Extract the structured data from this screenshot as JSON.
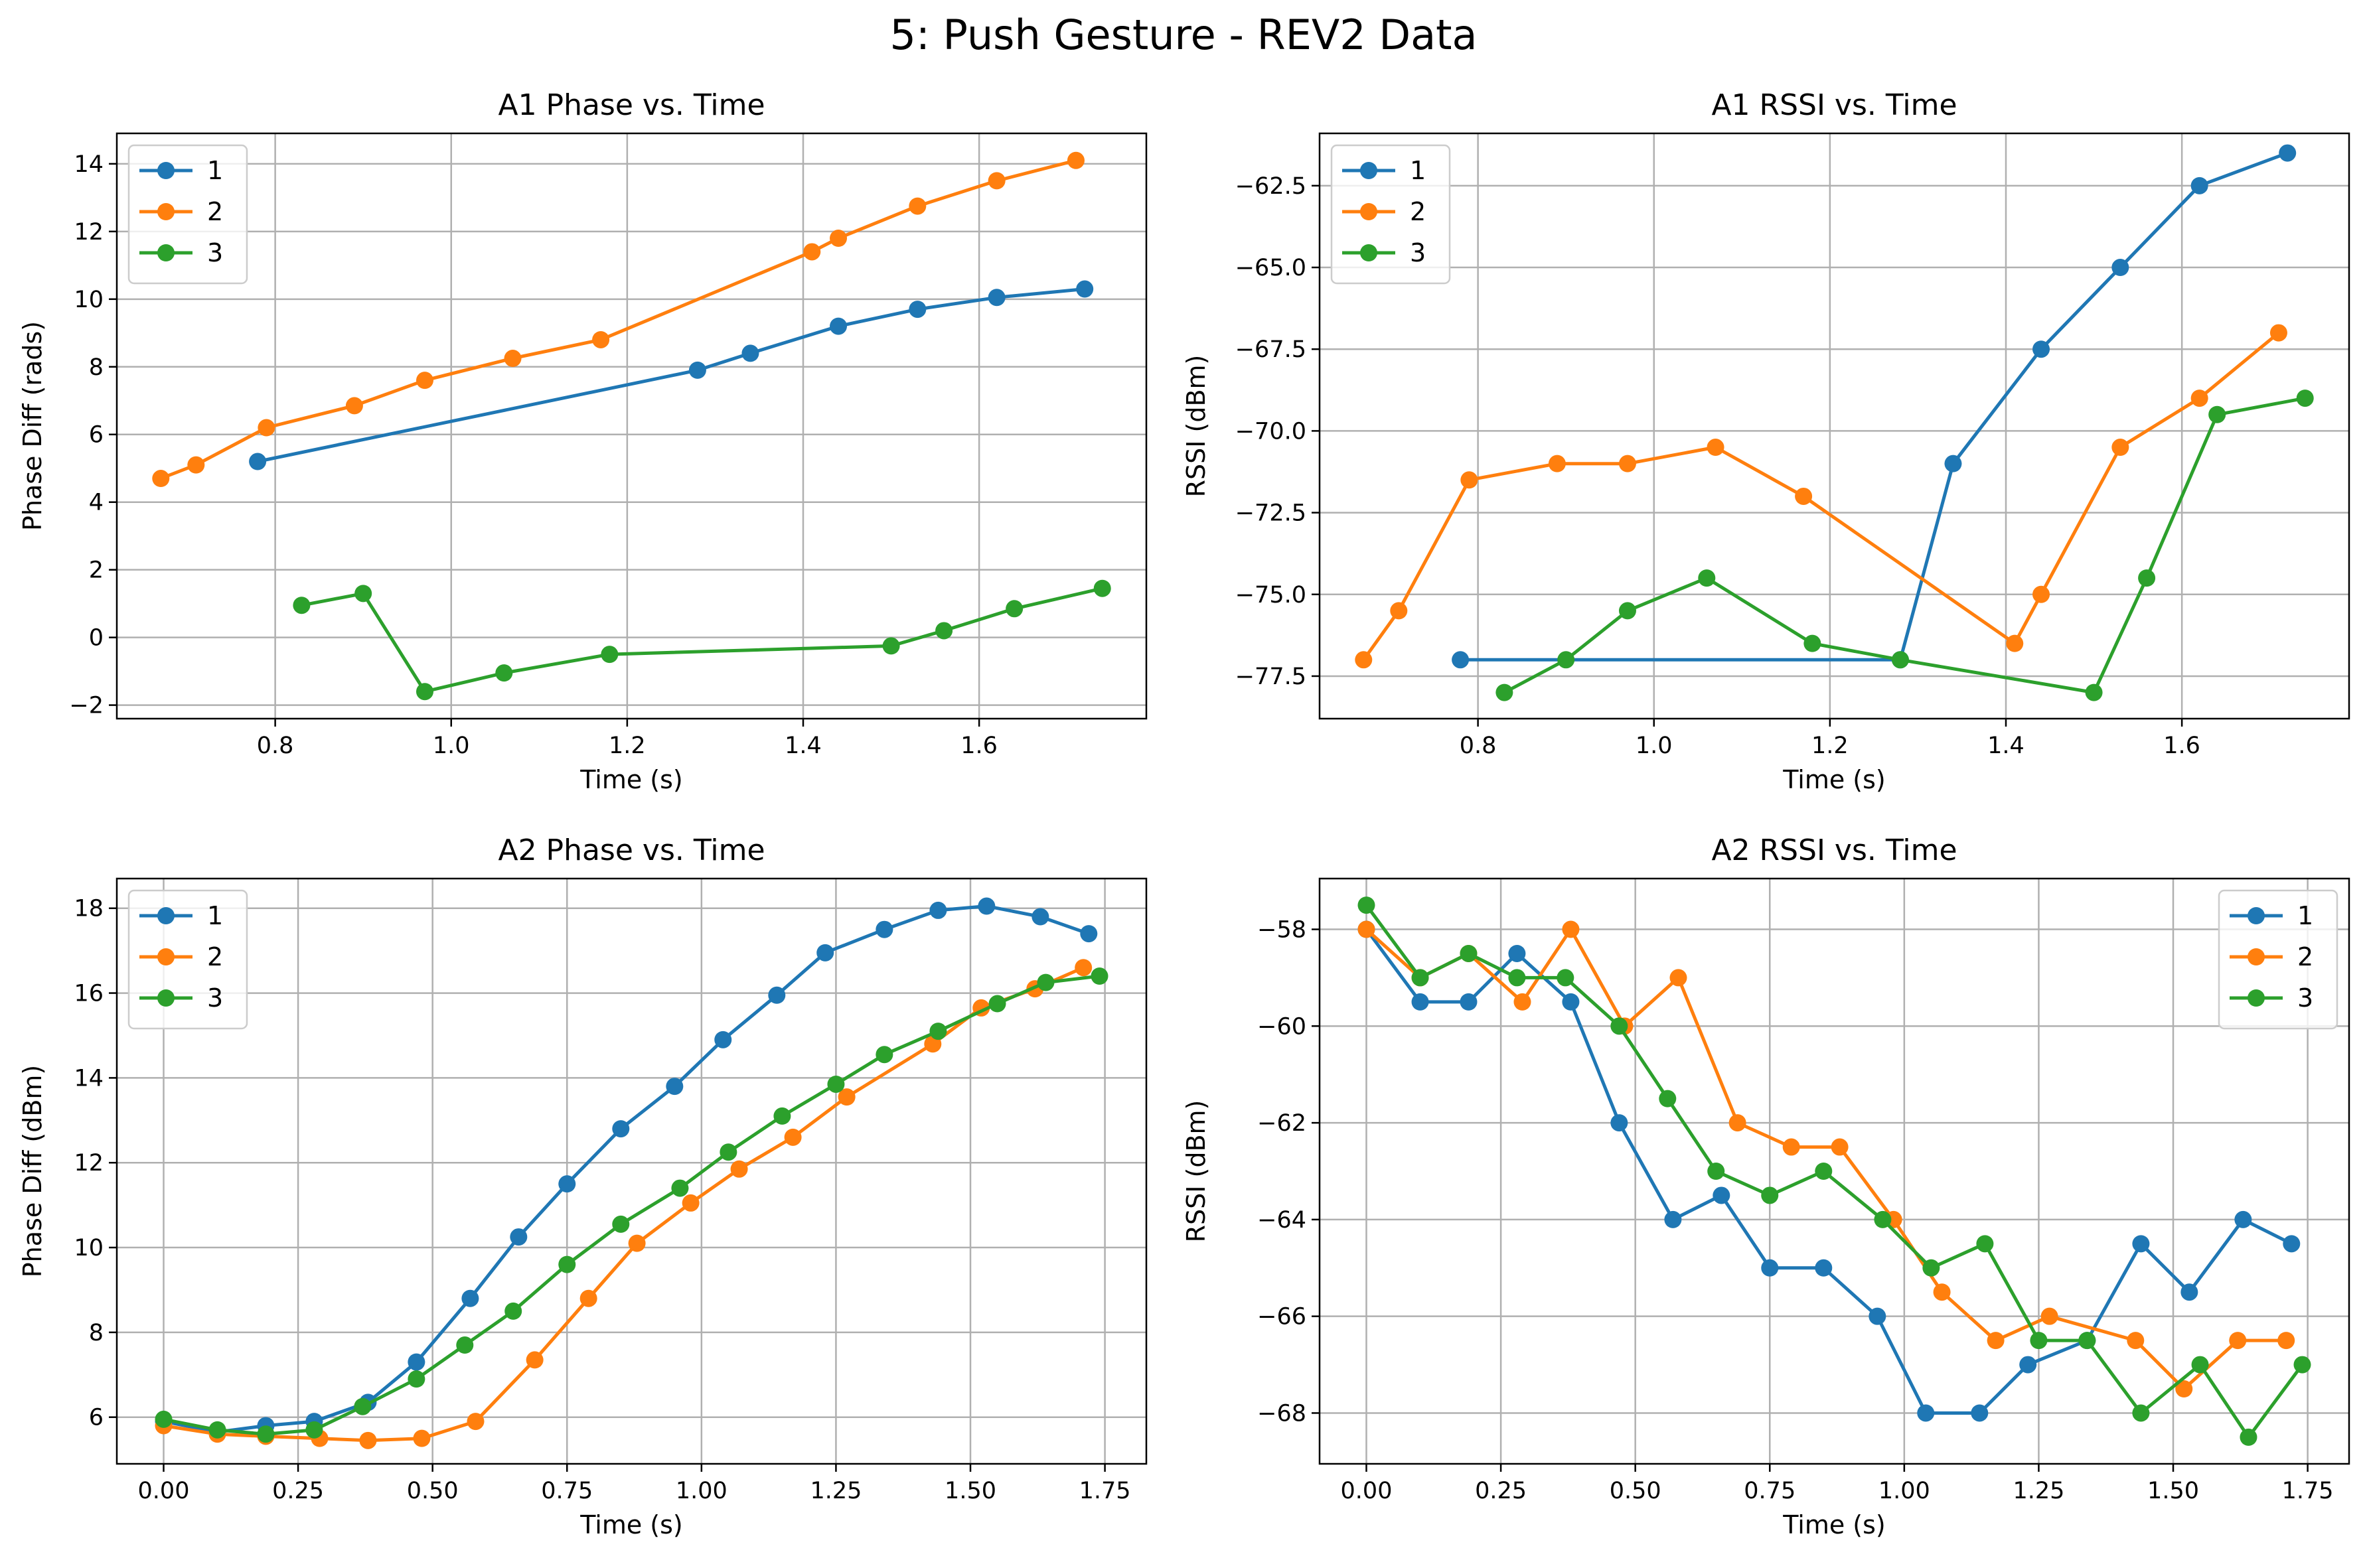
{
  "title": "5: Push Gesture - REV2 Data",
  "colors": {
    "1": "#1f77b4",
    "2": "#ff7f0e",
    "3": "#2ca02c"
  },
  "chart_data": [
    {
      "type": "line",
      "title": "A1 Phase vs. Time",
      "xlabel": "Time (s)",
      "ylabel": "Phase Diff (rads)",
      "xlim": [
        0.62,
        1.79
      ],
      "ylim": [
        -2.4,
        14.9
      ],
      "xticks": [
        0.8,
        1.0,
        1.2,
        1.4,
        1.6
      ],
      "xtick_labels": [
        "0.8",
        "1.0",
        "1.2",
        "1.4",
        "1.6"
      ],
      "yticks": [
        -2,
        0,
        2,
        4,
        6,
        8,
        10,
        12,
        14
      ],
      "ytick_labels": [
        "−2",
        "0",
        "2",
        "4",
        "6",
        "8",
        "10",
        "12",
        "14"
      ],
      "legend": "upper-left",
      "grid": true,
      "series": [
        {
          "name": "1",
          "x": [
            0.78,
            1.28,
            1.34,
            1.44,
            1.53,
            1.62,
            1.72
          ],
          "y": [
            5.2,
            7.9,
            8.4,
            9.2,
            9.7,
            10.05,
            10.3
          ]
        },
        {
          "name": "2",
          "x": [
            0.67,
            0.71,
            0.79,
            0.89,
            0.97,
            1.07,
            1.17,
            1.41,
            1.44,
            1.53,
            1.62,
            1.71
          ],
          "y": [
            4.7,
            5.1,
            6.2,
            6.85,
            7.6,
            8.25,
            8.8,
            11.4,
            11.8,
            12.75,
            13.5,
            14.1
          ]
        },
        {
          "name": "3",
          "x": [
            0.83,
            0.9,
            0.97,
            1.06,
            1.18,
            1.5,
            1.56,
            1.64,
            1.74
          ],
          "y": [
            0.95,
            1.3,
            -1.6,
            -1.05,
            -0.5,
            -0.25,
            0.2,
            0.85,
            1.45
          ]
        }
      ]
    },
    {
      "type": "line",
      "title": "A1 RSSI vs. Time",
      "xlabel": "Time (s)",
      "ylabel": "RSSI (dBm)",
      "xlim": [
        0.62,
        1.79
      ],
      "ylim": [
        -78.8,
        -60.9
      ],
      "xticks": [
        0.8,
        1.0,
        1.2,
        1.4,
        1.6
      ],
      "xtick_labels": [
        "0.8",
        "1.0",
        "1.2",
        "1.4",
        "1.6"
      ],
      "yticks": [
        -77.5,
        -75.0,
        -72.5,
        -70.0,
        -67.5,
        -65.0,
        -62.5
      ],
      "ytick_labels": [
        "−77.5",
        "−75.0",
        "−72.5",
        "−70.0",
        "−67.5",
        "−65.0",
        "−62.5"
      ],
      "legend": "upper-left",
      "grid": true,
      "series": [
        {
          "name": "1",
          "x": [
            0.78,
            1.28,
            1.34,
            1.44,
            1.53,
            1.62,
            1.72
          ],
          "y": [
            -77,
            -77,
            -71,
            -67.5,
            -65,
            -62.5,
            -61.5
          ]
        },
        {
          "name": "2",
          "x": [
            0.67,
            0.71,
            0.79,
            0.89,
            0.97,
            1.07,
            1.17,
            1.41,
            1.44,
            1.53,
            1.62,
            1.71
          ],
          "y": [
            -77,
            -75.5,
            -71.5,
            -71,
            -71,
            -70.5,
            -72,
            -76.5,
            -75,
            -70.5,
            -69,
            -67
          ]
        },
        {
          "name": "3",
          "x": [
            0.83,
            0.9,
            0.97,
            1.06,
            1.18,
            1.28,
            1.5,
            1.56,
            1.64,
            1.74
          ],
          "y": [
            -78,
            -77,
            -75.5,
            -74.5,
            -76.5,
            -77,
            -78,
            -74.5,
            -69.5,
            -69
          ]
        }
      ]
    },
    {
      "type": "line",
      "title": "A2 Phase vs. Time",
      "xlabel": "Time (s)",
      "ylabel": "Phase Diff (dBm)",
      "xlim": [
        -0.087,
        1.827
      ],
      "ylim": [
        4.9,
        18.7
      ],
      "xticks": [
        0.0,
        0.25,
        0.5,
        0.75,
        1.0,
        1.25,
        1.5,
        1.75
      ],
      "xtick_labels": [
        "0.00",
        "0.25",
        "0.50",
        "0.75",
        "1.00",
        "1.25",
        "1.50",
        "1.75"
      ],
      "yticks": [
        6,
        8,
        10,
        12,
        14,
        16,
        18
      ],
      "ytick_labels": [
        "6",
        "8",
        "10",
        "12",
        "14",
        "16",
        "18"
      ],
      "legend": "upper-left",
      "grid": true,
      "series": [
        {
          "name": "1",
          "x": [
            0.0,
            0.1,
            0.19,
            0.28,
            0.38,
            0.47,
            0.57,
            0.66,
            0.75,
            0.85,
            0.95,
            1.04,
            1.14,
            1.23,
            1.34,
            1.44,
            1.53,
            1.63,
            1.72
          ],
          "y": [
            5.9,
            5.65,
            5.8,
            5.9,
            6.35,
            7.3,
            8.8,
            10.25,
            11.5,
            12.8,
            13.8,
            14.9,
            15.95,
            16.95,
            17.5,
            17.95,
            18.05,
            17.8,
            17.4
          ]
        },
        {
          "name": "2",
          "x": [
            0.0,
            0.1,
            0.19,
            0.29,
            0.38,
            0.48,
            0.58,
            0.69,
            0.79,
            0.88,
            0.98,
            1.07,
            1.17,
            1.27,
            1.43,
            1.52,
            1.62,
            1.71
          ],
          "y": [
            5.8,
            5.6,
            5.55,
            5.5,
            5.45,
            5.5,
            5.9,
            7.35,
            8.8,
            10.1,
            11.05,
            11.85,
            12.6,
            13.55,
            14.8,
            15.65,
            16.1,
            16.6
          ]
        },
        {
          "name": "3",
          "x": [
            0.0,
            0.1,
            0.19,
            0.28,
            0.37,
            0.47,
            0.56,
            0.65,
            0.75,
            0.85,
            0.96,
            1.05,
            1.15,
            1.25,
            1.34,
            1.44,
            1.55,
            1.64,
            1.74
          ],
          "y": [
            5.95,
            5.7,
            5.6,
            5.7,
            6.25,
            6.9,
            7.7,
            8.5,
            9.6,
            10.55,
            11.4,
            12.25,
            13.1,
            13.85,
            14.55,
            15.1,
            15.75,
            16.25,
            16.4
          ]
        }
      ]
    },
    {
      "type": "line",
      "title": "A2 RSSI vs. Time",
      "xlabel": "Time (s)",
      "ylabel": "RSSI (dBm)",
      "xlim": [
        -0.087,
        1.827
      ],
      "ylim": [
        -69.05,
        -56.95
      ],
      "xticks": [
        0.0,
        0.25,
        0.5,
        0.75,
        1.0,
        1.25,
        1.5,
        1.75
      ],
      "xtick_labels": [
        "0.00",
        "0.25",
        "0.50",
        "0.75",
        "1.00",
        "1.25",
        "1.50",
        "1.75"
      ],
      "yticks": [
        -68,
        -66,
        -64,
        -62,
        -60,
        -58
      ],
      "ytick_labels": [
        "−68",
        "−66",
        "−64",
        "−62",
        "−60",
        "−58"
      ],
      "legend": "upper-right",
      "grid": true,
      "series": [
        {
          "name": "1",
          "x": [
            0.0,
            0.1,
            0.19,
            0.28,
            0.38,
            0.47,
            0.57,
            0.66,
            0.75,
            0.85,
            0.95,
            1.04,
            1.14,
            1.23,
            1.34,
            1.44,
            1.53,
            1.63,
            1.72
          ],
          "y": [
            -58,
            -59.5,
            -59.5,
            -58.5,
            -59.5,
            -62,
            -64,
            -63.5,
            -65,
            -65,
            -66,
            -68,
            -68,
            -67,
            -66.5,
            -64.5,
            -65.5,
            -64,
            -64.5
          ]
        },
        {
          "name": "2",
          "x": [
            0.0,
            0.1,
            0.19,
            0.29,
            0.38,
            0.48,
            0.58,
            0.69,
            0.79,
            0.88,
            0.98,
            1.07,
            1.17,
            1.27,
            1.43,
            1.52,
            1.62,
            1.71
          ],
          "y": [
            -58,
            -59,
            -58.5,
            -59.5,
            -58,
            -60,
            -59,
            -62,
            -62.5,
            -62.5,
            -64,
            -65.5,
            -66.5,
            -66,
            -66.5,
            -67.5,
            -66.5,
            -66.5
          ]
        },
        {
          "name": "3",
          "x": [
            0.0,
            0.1,
            0.19,
            0.28,
            0.37,
            0.47,
            0.56,
            0.65,
            0.75,
            0.85,
            0.96,
            1.05,
            1.15,
            1.25,
            1.34,
            1.44,
            1.55,
            1.64,
            1.74
          ],
          "y": [
            -57.5,
            -59,
            -58.5,
            -59,
            -59,
            -60,
            -61.5,
            -63,
            -63.5,
            -63,
            -64,
            -65,
            -64.5,
            -66.5,
            -66.5,
            -68,
            -67,
            -68.5,
            -67
          ]
        }
      ]
    }
  ]
}
